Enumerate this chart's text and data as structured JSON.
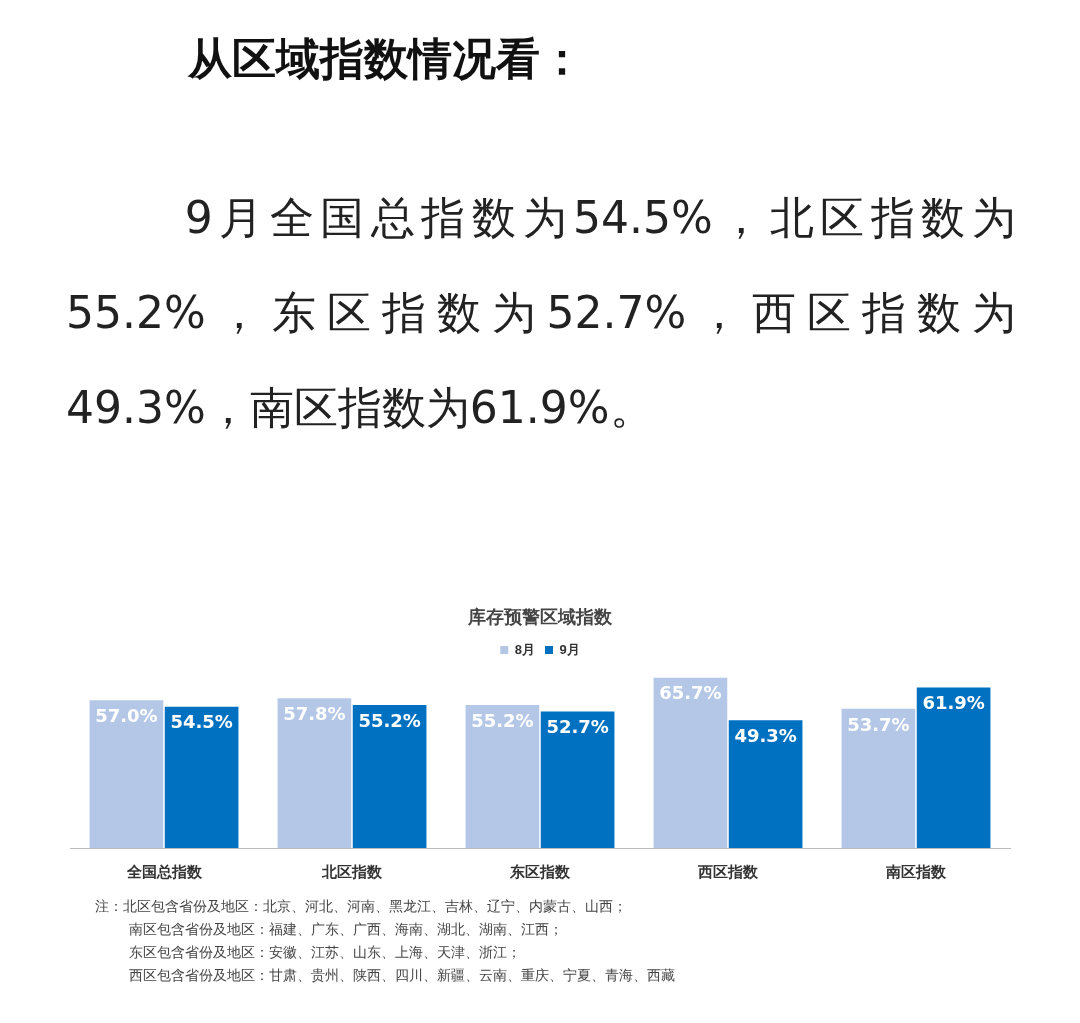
{
  "chart_data": {
    "type": "bar",
    "title": "库存预警区域指数",
    "categories": [
      "全国总指数",
      "北区指数",
      "东区指数",
      "西区指数",
      "南区指数"
    ],
    "series": [
      {
        "name": "8月",
        "color": "#b4c7e7",
        "values": [
          57.0,
          57.8,
          55.2,
          65.7,
          53.7
        ],
        "value_labels": [
          "57.0%",
          "57.8%",
          "55.2%",
          "65.7%",
          "53.7%"
        ]
      },
      {
        "name": "9月",
        "color": "#0070c0",
        "values": [
          54.5,
          55.2,
          52.7,
          49.3,
          61.9
        ],
        "value_labels": [
          "54.5%",
          "55.2%",
          "52.7%",
          "49.3%",
          "61.9%"
        ]
      }
    ],
    "legend": "top",
    "grid": false,
    "tick_labels": "x",
    "annotations": [
      "从区域指数情况看：",
      "9月全国总指数为54.5%，北区指数为55.2%，东区指数为52.7%，西区指数为49.3%，南区指数为61.9%。",
      "注：北区包含省份及地区：北京、河北、河南、黑龙江、吉林、辽宁、内蒙古、山西；",
      "南区包含省份及地区：福建、广东、广西、海南、湖北、湖南、江西；",
      "东区包含省份及地区：安徽、江苏、山东、上海、天津、浙江；",
      "西区包含省份及地区：甘肃、贵州、陕西、四川、新疆、云南、重庆、宁夏、青海、西藏"
    ]
  }
}
